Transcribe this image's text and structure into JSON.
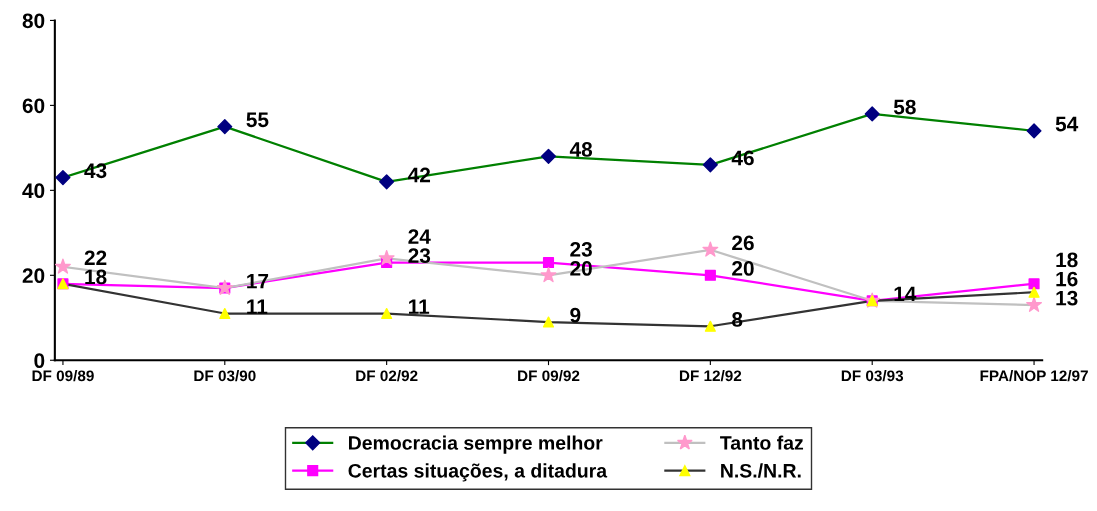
{
  "chart_data": {
    "type": "line",
    "categories": [
      "DF 09/89",
      "DF 03/90",
      "DF 02/92",
      "DF 09/92",
      "DF 12/92",
      "DF 03/93",
      "FPA/NOP 12/97"
    ],
    "ylim": [
      0,
      80
    ],
    "yticks": [
      0,
      20,
      40,
      60,
      80
    ],
    "grid": false,
    "legend": "bottom",
    "line_style": "solid",
    "series": [
      {
        "name": "Democracia sempre melhor",
        "color": "#008000",
        "marker": "diamond",
        "colors": [
          "#000080",
          "#000080",
          "#000080",
          "#000080",
          "#000080",
          "#000080",
          "#000080"
        ],
        "values": [
          43,
          55,
          42,
          48,
          46,
          58,
          54
        ],
        "value_labels": [
          "43",
          "55",
          "42",
          "48",
          "46",
          "58",
          "54"
        ]
      },
      {
        "name": "Certas situações, a ditadura",
        "color": "#ff00ff",
        "marker": "square",
        "colors": [
          "#ff00ff",
          "#ff00ff",
          "#ff00ff",
          "#ff00ff",
          "#ff00ff",
          "#ff00ff",
          "#ff00ff"
        ],
        "values": [
          18,
          17,
          23,
          23,
          20,
          14,
          18
        ],
        "value_labels": [
          null,
          "17",
          "23",
          "23",
          "20",
          null,
          "18"
        ]
      },
      {
        "name": "Tanto faz",
        "color": "#c0c0c0",
        "marker": "star",
        "colors": [
          "#ff99cc",
          "#ff99cc",
          "#ff99cc",
          "#ff99cc",
          "#ff99cc",
          "#ff99cc",
          "#ff99cc"
        ],
        "values": [
          22,
          17,
          24,
          20,
          26,
          14,
          13
        ],
        "value_labels": [
          "22",
          null,
          "24",
          "20",
          "26",
          null,
          "13"
        ]
      },
      {
        "name": "N.S./N.R.",
        "color": "#333333",
        "marker": "triangle",
        "colors": [
          "#ffff00",
          "#ffff00",
          "#ffff00",
          "#ffff00",
          "#ffff00",
          "#ffff00",
          "#ffff00"
        ],
        "values": [
          18,
          11,
          11,
          9,
          8,
          14,
          16
        ],
        "value_labels": [
          "18",
          "11",
          "11",
          "9",
          "8",
          "14",
          "16"
        ]
      }
    ]
  }
}
